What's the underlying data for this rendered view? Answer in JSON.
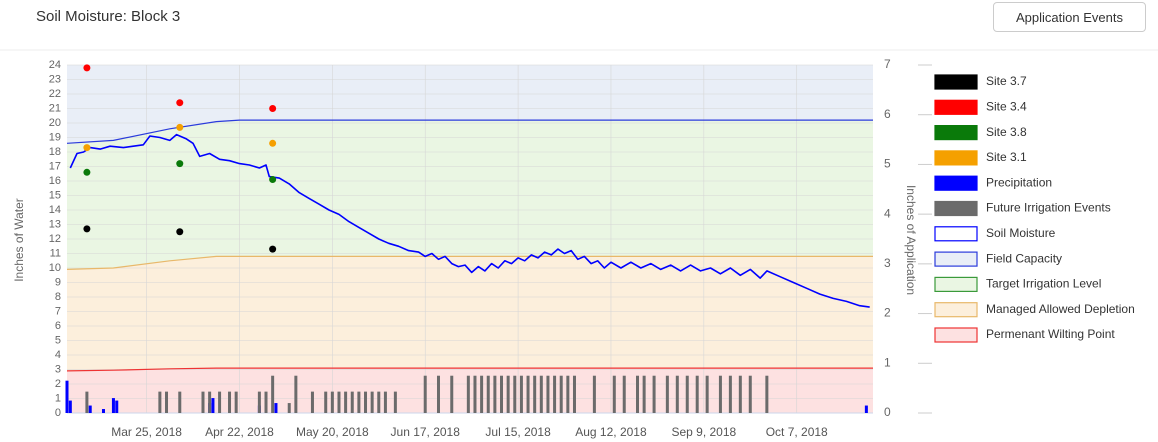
{
  "header": {
    "button": "Application Events"
  },
  "chart_data": {
    "type": "combo",
    "title": "Soil Moisture: Block 3",
    "ylabel": "Inches of Water",
    "y2label": "Inches of Application",
    "xlim": [
      "2018-03-01",
      "2018-10-30"
    ],
    "xticks": [
      {
        "value": "2018-03-25",
        "label": "Mar 25, 2018"
      },
      {
        "value": "2018-04-22",
        "label": "Apr 22, 2018"
      },
      {
        "value": "2018-05-20",
        "label": "May 20, 2018"
      },
      {
        "value": "2018-06-17",
        "label": "Jun 17, 2018"
      },
      {
        "value": "2018-07-15",
        "label": "Jul 15, 2018"
      },
      {
        "value": "2018-08-12",
        "label": "Aug 12, 2018"
      },
      {
        "value": "2018-09-09",
        "label": "Sep 9, 2018"
      },
      {
        "value": "2018-10-07",
        "label": "Oct 7, 2018"
      }
    ],
    "ylim": [
      0,
      24
    ],
    "yticks": [
      0,
      1,
      2,
      3,
      4,
      5,
      6,
      7,
      8,
      9,
      10,
      11,
      12,
      13,
      14,
      15,
      16,
      17,
      18,
      19,
      20,
      21,
      22,
      23,
      24
    ],
    "y2lim": [
      0,
      7
    ],
    "y2ticks": [
      0,
      1,
      2,
      3,
      4,
      5,
      6,
      7
    ],
    "grid": true,
    "legend": "right",
    "series": [
      {
        "name": "Site 3.7",
        "color": "#000000",
        "kind": "scatter",
        "x": [
          "2018-03-07",
          "2018-04-04",
          "2018-05-02"
        ],
        "values": [
          12.7,
          12.5,
          11.3
        ]
      },
      {
        "name": "Site 3.4",
        "color": "#ff0000",
        "kind": "scatter",
        "x": [
          "2018-03-07",
          "2018-04-04",
          "2018-05-02"
        ],
        "values": [
          23.8,
          21.4,
          21.0
        ]
      },
      {
        "name": "Site 3.8",
        "color": "#0a7a0a",
        "kind": "scatter",
        "x": [
          "2018-03-07",
          "2018-04-04",
          "2018-05-02"
        ],
        "values": [
          16.6,
          17.2,
          16.1
        ]
      },
      {
        "name": "Site 3.1",
        "color": "#f5a000",
        "kind": "scatter",
        "x": [
          "2018-03-07",
          "2018-04-04",
          "2018-05-02"
        ],
        "values": [
          18.3,
          19.7,
          18.6
        ]
      },
      {
        "name": "Precipitation",
        "color": "#0000ff",
        "kind": "bar",
        "axis": "y2",
        "x": [
          "2018-03-01",
          "2018-03-02",
          "2018-03-08",
          "2018-03-12",
          "2018-03-15",
          "2018-03-16",
          "2018-04-13",
          "2018-04-14",
          "2018-04-28",
          "2018-05-03",
          "2018-10-28"
        ],
        "values": [
          0.65,
          0.25,
          0.15,
          0.08,
          0.3,
          0.25,
          0.2,
          0.3,
          0.15,
          0.2,
          0.15
        ]
      },
      {
        "name": "Future Irrigation Events",
        "color": "#6b6b6b",
        "kind": "bar",
        "axis": "y2",
        "x": [
          "2018-03-07",
          "2018-03-29",
          "2018-03-31",
          "2018-04-04",
          "2018-04-11",
          "2018-04-13",
          "2018-04-16",
          "2018-04-19",
          "2018-04-21",
          "2018-04-28",
          "2018-04-30",
          "2018-05-02",
          "2018-05-07",
          "2018-05-09",
          "2018-05-14",
          "2018-05-18",
          "2018-05-20",
          "2018-05-22",
          "2018-05-24",
          "2018-05-26",
          "2018-05-28",
          "2018-05-30",
          "2018-06-01",
          "2018-06-03",
          "2018-06-05",
          "2018-06-08",
          "2018-06-17",
          "2018-06-21",
          "2018-06-25",
          "2018-06-30",
          "2018-07-02",
          "2018-07-04",
          "2018-07-06",
          "2018-07-08",
          "2018-07-10",
          "2018-07-12",
          "2018-07-14",
          "2018-07-16",
          "2018-07-18",
          "2018-07-20",
          "2018-07-22",
          "2018-07-24",
          "2018-07-26",
          "2018-07-28",
          "2018-07-30",
          "2018-08-01",
          "2018-08-07",
          "2018-08-13",
          "2018-08-16",
          "2018-08-20",
          "2018-08-22",
          "2018-08-25",
          "2018-08-29",
          "2018-09-01",
          "2018-09-04",
          "2018-09-07",
          "2018-09-10",
          "2018-09-14",
          "2018-09-17",
          "2018-09-20",
          "2018-09-23",
          "2018-09-28"
        ],
        "values": [
          0.43,
          0.43,
          0.43,
          0.43,
          0.43,
          0.43,
          0.43,
          0.43,
          0.43,
          0.43,
          0.43,
          0.75,
          0.2,
          0.75,
          0.43,
          0.43,
          0.43,
          0.43,
          0.43,
          0.43,
          0.43,
          0.43,
          0.43,
          0.43,
          0.43,
          0.43,
          0.75,
          0.75,
          0.75,
          0.75,
          0.75,
          0.75,
          0.75,
          0.75,
          0.75,
          0.75,
          0.75,
          0.75,
          0.75,
          0.75,
          0.75,
          0.75,
          0.75,
          0.75,
          0.75,
          0.75,
          0.75,
          0.75,
          0.75,
          0.75,
          0.75,
          0.75,
          0.75,
          0.75,
          0.75,
          0.75,
          0.75,
          0.75,
          0.75,
          0.75,
          0.75,
          0.75
        ]
      },
      {
        "name": "Soil Moisture",
        "color": "#0000ff",
        "kind": "line",
        "x": [
          "2018-03-02",
          "2018-03-04",
          "2018-03-06",
          "2018-03-08",
          "2018-03-11",
          "2018-03-14",
          "2018-03-18",
          "2018-03-21",
          "2018-03-24",
          "2018-03-26",
          "2018-03-29",
          "2018-04-01",
          "2018-04-03",
          "2018-04-06",
          "2018-04-08",
          "2018-04-10",
          "2018-04-13",
          "2018-04-16",
          "2018-04-19",
          "2018-04-22",
          "2018-04-25",
          "2018-04-28",
          "2018-04-30",
          "2018-05-01",
          "2018-05-04",
          "2018-05-07",
          "2018-05-10",
          "2018-05-13",
          "2018-05-16",
          "2018-05-19",
          "2018-05-22",
          "2018-05-25",
          "2018-05-28",
          "2018-05-31",
          "2018-06-03",
          "2018-06-06",
          "2018-06-09",
          "2018-06-12",
          "2018-06-15",
          "2018-06-17",
          "2018-06-19",
          "2018-06-21",
          "2018-06-23",
          "2018-06-25",
          "2018-06-27",
          "2018-06-29",
          "2018-07-01",
          "2018-07-03",
          "2018-07-05",
          "2018-07-07",
          "2018-07-09",
          "2018-07-11",
          "2018-07-13",
          "2018-07-15",
          "2018-07-17",
          "2018-07-19",
          "2018-07-21",
          "2018-07-23",
          "2018-07-25",
          "2018-07-27",
          "2018-07-29",
          "2018-07-31",
          "2018-08-02",
          "2018-08-04",
          "2018-08-06",
          "2018-08-08",
          "2018-08-10",
          "2018-08-12",
          "2018-08-15",
          "2018-08-18",
          "2018-08-21",
          "2018-08-24",
          "2018-08-27",
          "2018-08-30",
          "2018-09-02",
          "2018-09-05",
          "2018-09-08",
          "2018-09-11",
          "2018-09-14",
          "2018-09-17",
          "2018-09-20",
          "2018-09-23",
          "2018-09-26",
          "2018-09-28",
          "2018-10-02",
          "2018-10-06",
          "2018-10-10",
          "2018-10-14",
          "2018-10-18",
          "2018-10-22",
          "2018-10-26",
          "2018-10-29"
        ],
        "values": [
          16.9,
          17.9,
          18.0,
          18.3,
          18.2,
          18.4,
          18.3,
          18.4,
          18.5,
          19.1,
          19.0,
          18.8,
          19.2,
          18.9,
          18.6,
          17.7,
          17.9,
          17.5,
          17.4,
          17.2,
          17.1,
          16.9,
          17.1,
          16.3,
          16.2,
          15.8,
          15.2,
          14.8,
          14.4,
          14.0,
          13.7,
          13.2,
          12.8,
          12.4,
          12.0,
          11.7,
          11.5,
          11.2,
          11.1,
          10.8,
          11.0,
          10.6,
          10.8,
          10.3,
          10.1,
          10.2,
          9.7,
          10.1,
          9.8,
          10.3,
          10.0,
          10.5,
          10.3,
          10.7,
          10.5,
          10.9,
          10.7,
          11.1,
          10.9,
          11.3,
          11.0,
          11.2,
          10.6,
          10.8,
          10.3,
          10.5,
          10.0,
          10.4,
          10.0,
          10.4,
          10.0,
          10.3,
          9.9,
          10.2,
          9.8,
          10.2,
          9.8,
          10.0,
          9.6,
          10.0,
          9.5,
          9.9,
          9.3,
          9.8,
          9.4,
          9.0,
          8.6,
          8.2,
          7.9,
          7.7,
          7.4,
          7.3
        ]
      },
      {
        "name": "Field Capacity",
        "color": "#2b3bdc",
        "fill": "#e9eef7",
        "kind": "ceiling",
        "x": [
          "2018-03-01",
          "2018-03-15",
          "2018-04-01",
          "2018-04-15",
          "2018-04-22",
          "2018-10-30"
        ],
        "values": [
          18.6,
          18.8,
          19.6,
          20.1,
          20.2,
          20.2
        ]
      },
      {
        "name": "Target Irrigation Level",
        "color": "#3a9a3a",
        "fill": "#eaf6e3",
        "kind": "band"
      },
      {
        "name": "Managed Allowed Depletion",
        "color": "#e8b86a",
        "fill": "#fcefdc",
        "kind": "level",
        "x": [
          "2018-03-01",
          "2018-03-15",
          "2018-04-01",
          "2018-04-15",
          "2018-04-22",
          "2018-10-30"
        ],
        "values": [
          9.9,
          10.0,
          10.5,
          10.8,
          10.8,
          10.8
        ]
      },
      {
        "name": "Permenant Wilting Point",
        "color": "#ee3333",
        "fill": "#fde1e1",
        "kind": "level",
        "x": [
          "2018-03-01",
          "2018-03-15",
          "2018-04-01",
          "2018-04-15",
          "2018-04-22",
          "2018-10-30"
        ],
        "values": [
          2.9,
          2.95,
          3.05,
          3.1,
          3.1,
          3.1
        ]
      }
    ]
  }
}
